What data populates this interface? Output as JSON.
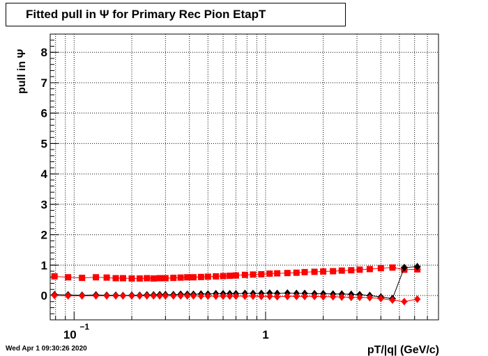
{
  "title": "Fitted pull in  Ψ  for Primary Rec Pion EtapT",
  "footer": "Wed Apr  1 09:30:26 2020",
  "chart_data": {
    "type": "scatter",
    "title": "Fitted pull in  Ψ  for Primary Rec Pion EtapT",
    "xlabel": "pT/|q| (GeV/c)",
    "ylabel": "pull in  Ψ",
    "xscale": "log",
    "xlim": [
      0.075,
      8.0
    ],
    "ylim": [
      -0.8,
      8.6
    ],
    "y_ticks": [
      "0",
      "1",
      "2",
      "3",
      "4",
      "5",
      "6",
      "7",
      "8"
    ],
    "x_ticks": [
      {
        "value": 0.1,
        "base": "10",
        "exp": "−1"
      },
      {
        "value": 1,
        "base": "1",
        "exp": ""
      }
    ],
    "grid": true,
    "legend": "none",
    "series": [
      {
        "marker": "square",
        "color": "#ff0000",
        "x": [
          0.079,
          0.093,
          0.11,
          0.13,
          0.148,
          0.165,
          0.18,
          0.2,
          0.22,
          0.24,
          0.26,
          0.28,
          0.3,
          0.33,
          0.36,
          0.39,
          0.42,
          0.46,
          0.5,
          0.55,
          0.6,
          0.65,
          0.7,
          0.78,
          0.86,
          0.95,
          1.05,
          1.15,
          1.3,
          1.45,
          1.6,
          1.8,
          2.0,
          2.25,
          2.5,
          2.8,
          3.1,
          3.5,
          4.0,
          4.6,
          5.3,
          6.2
        ],
        "y": [
          0.63,
          0.6,
          0.58,
          0.6,
          0.59,
          0.57,
          0.57,
          0.56,
          0.56,
          0.57,
          0.56,
          0.57,
          0.57,
          0.58,
          0.59,
          0.6,
          0.6,
          0.61,
          0.62,
          0.63,
          0.64,
          0.65,
          0.66,
          0.68,
          0.69,
          0.7,
          0.72,
          0.73,
          0.74,
          0.75,
          0.77,
          0.78,
          0.79,
          0.8,
          0.82,
          0.83,
          0.85,
          0.87,
          0.9,
          0.92,
          0.85,
          0.86
        ]
      },
      {
        "marker": "diamond",
        "color": "#000000",
        "x": [
          0.079,
          0.093,
          0.11,
          0.13,
          0.148,
          0.165,
          0.18,
          0.2,
          0.22,
          0.24,
          0.26,
          0.28,
          0.3,
          0.33,
          0.36,
          0.39,
          0.42,
          0.46,
          0.5,
          0.55,
          0.6,
          0.65,
          0.7,
          0.78,
          0.86,
          0.95,
          1.05,
          1.15,
          1.3,
          1.45,
          1.6,
          1.8,
          2.0,
          2.25,
          2.5,
          2.8,
          3.1,
          3.5,
          4.0,
          4.6,
          5.3,
          6.2
        ],
        "y": [
          0.03,
          0.02,
          0.01,
          0.02,
          0.01,
          0.01,
          0.0,
          0.01,
          0.01,
          0.02,
          0.02,
          0.03,
          0.03,
          0.03,
          0.04,
          0.04,
          0.04,
          0.05,
          0.05,
          0.06,
          0.06,
          0.06,
          0.06,
          0.07,
          0.07,
          0.07,
          0.08,
          0.07,
          0.08,
          0.07,
          0.07,
          0.06,
          0.06,
          0.05,
          0.05,
          0.04,
          0.03,
          0.0,
          -0.05,
          -0.1,
          0.92,
          0.95
        ]
      },
      {
        "marker": "diamond",
        "color": "#ff0000",
        "x": [
          0.079,
          0.093,
          0.11,
          0.13,
          0.148,
          0.165,
          0.18,
          0.2,
          0.22,
          0.24,
          0.26,
          0.28,
          0.3,
          0.33,
          0.36,
          0.39,
          0.42,
          0.46,
          0.5,
          0.55,
          0.6,
          0.65,
          0.7,
          0.78,
          0.86,
          0.95,
          1.05,
          1.15,
          1.3,
          1.45,
          1.6,
          1.8,
          2.0,
          2.25,
          2.5,
          2.8,
          3.1,
          3.5,
          4.0,
          4.6,
          5.3,
          6.2
        ],
        "y": [
          0.0,
          -0.01,
          -0.01,
          -0.01,
          -0.01,
          -0.01,
          -0.01,
          -0.01,
          -0.01,
          -0.01,
          -0.01,
          -0.01,
          -0.01,
          -0.01,
          -0.01,
          -0.01,
          -0.01,
          -0.02,
          -0.02,
          -0.02,
          -0.02,
          -0.02,
          -0.02,
          -0.02,
          -0.02,
          -0.03,
          -0.03,
          -0.04,
          -0.03,
          -0.03,
          -0.03,
          -0.03,
          -0.04,
          -0.04,
          -0.05,
          -0.06,
          -0.06,
          -0.07,
          -0.1,
          -0.15,
          -0.2,
          -0.12
        ]
      }
    ]
  }
}
